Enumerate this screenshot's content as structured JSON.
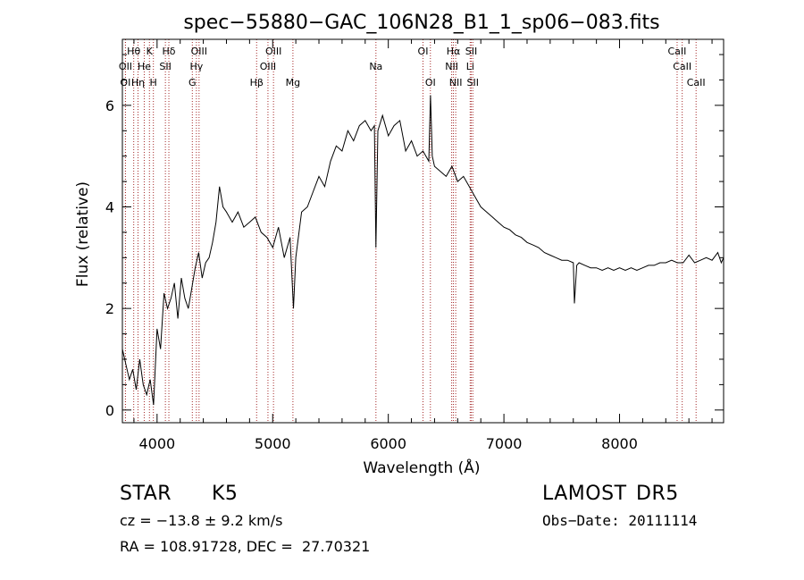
{
  "chart_data": {
    "type": "line",
    "title": "spec−55880−GAC_106N28_B1_1_sp06−083.fits",
    "xlabel": "Wavelength (Å)",
    "ylabel": "Flux (relative)",
    "xlim": [
      3700,
      8900
    ],
    "ylim": [
      -0.25,
      7.3
    ],
    "xticks": [
      4000,
      5000,
      6000,
      7000,
      8000
    ],
    "yticks": [
      0,
      2,
      4,
      6
    ],
    "grid": false,
    "line_color": "#000000",
    "marker_color": "#a52a2a",
    "spectral_lines": [
      {
        "label": "Hθ",
        "wavelength": 3798,
        "row": 0
      },
      {
        "label": "K",
        "wavelength": 3934,
        "row": 0
      },
      {
        "label": "Hδ",
        "wavelength": 4102,
        "row": 0
      },
      {
        "label": "OIII",
        "wavelength": 4363,
        "row": 0
      },
      {
        "label": "OIII",
        "wavelength": 5007,
        "row": 0
      },
      {
        "label": "OI",
        "wavelength": 6300,
        "row": 0
      },
      {
        "label": "Hα",
        "wavelength": 6563,
        "row": 0
      },
      {
        "label": "SII",
        "wavelength": 6717,
        "row": 0
      },
      {
        "label": "CaII",
        "wavelength": 8498,
        "row": 0
      },
      {
        "label": "OII",
        "wavelength": 3727,
        "row": 1
      },
      {
        "label": "He",
        "wavelength": 3889,
        "row": 1
      },
      {
        "label": "SII",
        "wavelength": 4072,
        "row": 1
      },
      {
        "label": "Hγ",
        "wavelength": 4340,
        "row": 1
      },
      {
        "label": "OIII",
        "wavelength": 4959,
        "row": 1
      },
      {
        "label": "Na",
        "wavelength": 5893,
        "row": 1
      },
      {
        "label": "NII",
        "wavelength": 6548,
        "row": 1
      },
      {
        "label": "Li",
        "wavelength": 6708,
        "row": 1
      },
      {
        "label": "CaII",
        "wavelength": 8542,
        "row": 1
      },
      {
        "label": "OI",
        "wavelength": 3726,
        "row": 2
      },
      {
        "label": "Hη",
        "wavelength": 3835,
        "row": 2
      },
      {
        "label": "H",
        "wavelength": 3968,
        "row": 2
      },
      {
        "label": "G",
        "wavelength": 4305,
        "row": 2
      },
      {
        "label": "Hβ",
        "wavelength": 4861,
        "row": 2
      },
      {
        "label": "Mg",
        "wavelength": 5175,
        "row": 2
      },
      {
        "label": "OI",
        "wavelength": 6364,
        "row": 2
      },
      {
        "label": "NII",
        "wavelength": 6583,
        "row": 2
      },
      {
        "label": "SII",
        "wavelength": 6731,
        "row": 2
      },
      {
        "label": "CaII",
        "wavelength": 8662,
        "row": 2
      }
    ],
    "series": [
      {
        "x": [
          3700,
          3730,
          3760,
          3790,
          3820,
          3850,
          3880,
          3910,
          3940,
          3970,
          4000,
          4030,
          4060,
          4090,
          4120,
          4150,
          4180,
          4210,
          4240,
          4270,
          4300,
          4330,
          4360,
          4390,
          4420,
          4450,
          4480,
          4510,
          4540,
          4570,
          4600,
          4650,
          4700,
          4750,
          4800,
          4850,
          4900,
          4950,
          5000,
          5050,
          5100,
          5150,
          5180,
          5200,
          5250,
          5300,
          5350,
          5400,
          5450,
          5500,
          5550,
          5600,
          5650,
          5700,
          5750,
          5800,
          5850,
          5880,
          5893,
          5910,
          5950,
          6000,
          6050,
          6100,
          6150,
          6200,
          6250,
          6300,
          6350,
          6365,
          6380,
          6400,
          6450,
          6500,
          6550,
          6600,
          6650,
          6700,
          6750,
          6800,
          6850,
          6900,
          6950,
          7000,
          7050,
          7100,
          7150,
          7200,
          7250,
          7300,
          7350,
          7400,
          7450,
          7500,
          7550,
          7600,
          7610,
          7630,
          7650,
          7700,
          7750,
          7800,
          7850,
          7900,
          7950,
          8000,
          8050,
          8100,
          8150,
          8200,
          8250,
          8300,
          8350,
          8400,
          8450,
          8500,
          8550,
          8600,
          8650,
          8700,
          8750,
          8800,
          8850,
          8880,
          8900
        ],
        "y": [
          1.2,
          0.9,
          0.6,
          0.8,
          0.4,
          1.0,
          0.5,
          0.3,
          0.6,
          0.1,
          1.6,
          1.2,
          2.3,
          2.0,
          2.2,
          2.5,
          1.8,
          2.6,
          2.2,
          2.0,
          2.4,
          2.8,
          3.1,
          2.6,
          2.9,
          3.0,
          3.3,
          3.7,
          4.4,
          4.0,
          3.9,
          3.7,
          3.9,
          3.6,
          3.7,
          3.8,
          3.5,
          3.4,
          3.2,
          3.6,
          3.0,
          3.4,
          2.0,
          3.0,
          3.9,
          4.0,
          4.3,
          4.6,
          4.4,
          4.9,
          5.2,
          5.1,
          5.5,
          5.3,
          5.6,
          5.7,
          5.5,
          5.6,
          3.2,
          5.5,
          5.8,
          5.4,
          5.6,
          5.7,
          5.1,
          5.3,
          5.0,
          5.1,
          4.9,
          6.2,
          5.0,
          4.8,
          4.7,
          4.6,
          4.8,
          4.5,
          4.6,
          4.4,
          4.2,
          4.0,
          3.9,
          3.8,
          3.7,
          3.6,
          3.55,
          3.45,
          3.4,
          3.3,
          3.25,
          3.2,
          3.1,
          3.05,
          3.0,
          2.95,
          2.95,
          2.9,
          2.1,
          2.85,
          2.9,
          2.85,
          2.8,
          2.8,
          2.75,
          2.8,
          2.75,
          2.8,
          2.75,
          2.8,
          2.75,
          2.8,
          2.85,
          2.85,
          2.9,
          2.9,
          2.95,
          2.9,
          2.9,
          3.05,
          2.9,
          2.95,
          3.0,
          2.95,
          3.1,
          2.9,
          3.0
        ]
      }
    ]
  },
  "footer": {
    "object_class": "STAR",
    "subclass": "K5",
    "survey": "LAMOST",
    "release": "DR5",
    "cz_text": "cz = −13.8 ± 9.2 km/s",
    "obs_date_text": "Obs−Date: 20111114",
    "coords_text": "RA = 108.91728, DEC =  27.70321"
  }
}
